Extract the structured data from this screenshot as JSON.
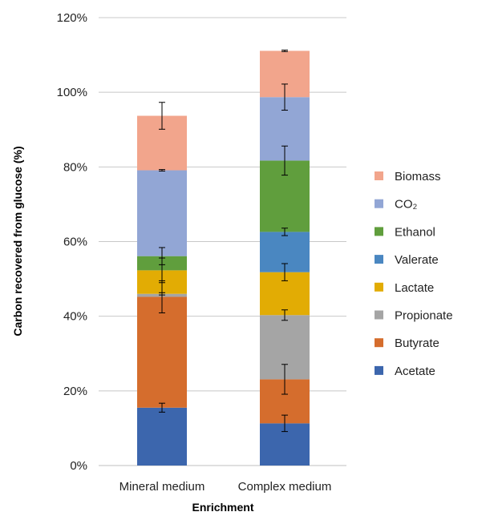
{
  "chart_data": {
    "type": "bar",
    "stacked": true,
    "xlabel": "Enrichment",
    "ylabel": "Carbon recovered from glucose (%)",
    "ylim": [
      0,
      120
    ],
    "yticks": [
      "0%",
      "20%",
      "40%",
      "60%",
      "80%",
      "100%",
      "120%"
    ],
    "grid": true,
    "legend_position": "right",
    "categories": [
      "Mineral medium",
      "Complex medium"
    ],
    "series": [
      {
        "name": "Acetate",
        "color": "#3c66ad",
        "values": [
          15.5,
          11.3
        ],
        "errors": [
          1.2,
          2.2
        ]
      },
      {
        "name": "Butyrate",
        "color": "#d56d2d",
        "values": [
          29.7,
          11.8
        ],
        "errors": [
          4.3,
          4.0
        ]
      },
      {
        "name": "Propionate",
        "color": "#a5a5a5",
        "values": [
          0.8,
          17.2
        ],
        "errors": [
          0.3,
          1.4
        ]
      },
      {
        "name": "Lactate",
        "color": "#e2ac04",
        "values": [
          6.3,
          11.5
        ],
        "errors": [
          3.3,
          2.3
        ]
      },
      {
        "name": "Valerate",
        "color": "#4a87c1",
        "values": [
          0,
          10.8
        ],
        "errors": [
          0,
          1.0
        ]
      },
      {
        "name": "Ethanol",
        "color": "#609e3d",
        "values": [
          3.8,
          19.1
        ],
        "errors": [
          2.3,
          3.9
        ]
      },
      {
        "name": "CO₂",
        "color": "#92a6d5",
        "values": [
          23.0,
          17.0
        ],
        "errors": [
          0.2,
          3.5
        ]
      },
      {
        "name": "Biomass",
        "color": "#f2a58c",
        "values": [
          14.6,
          12.4
        ],
        "errors": [
          3.6,
          0.2
        ]
      }
    ]
  }
}
